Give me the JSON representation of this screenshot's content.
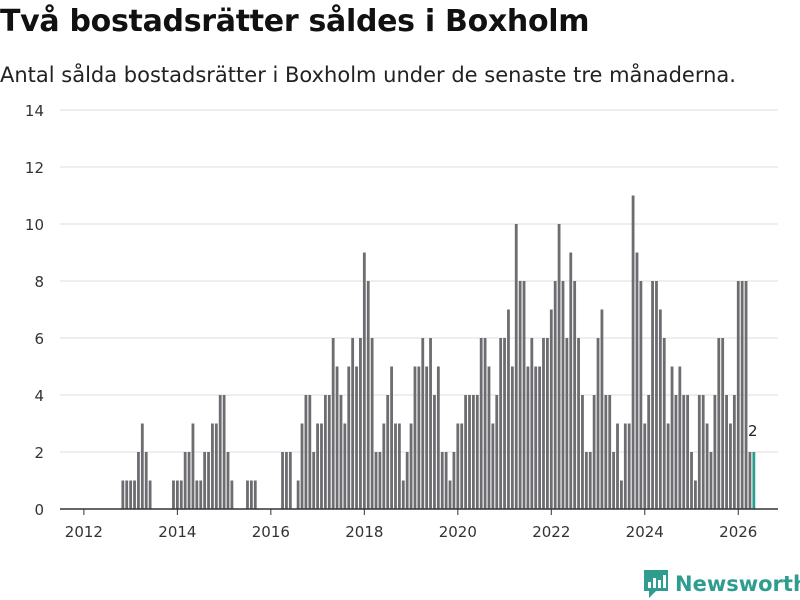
{
  "title": "Två bostadsrätter såldes i Boxholm",
  "subtitle": "Antal sålda bostadsrätter i Boxholm under de senaste tre månaderna.",
  "brand": {
    "name": "Newsworthy"
  },
  "colors": {
    "bar": "#6d6c70",
    "highlight": "#2a9d8f",
    "grid": "#dddddd",
    "axis": "#333333",
    "text": "#333333"
  },
  "chart_data": {
    "type": "bar",
    "title": "Två bostadsrätter såldes i Boxholm",
    "subtitle": "Antal sålda bostadsrätter i Boxholm under de senaste tre månaderna.",
    "xlabel": "",
    "ylabel": "",
    "x_start": "2011-12",
    "frequency": "monthly",
    "ylim": [
      0,
      14
    ],
    "yticks": [
      0,
      2,
      4,
      6,
      8,
      10,
      12,
      14
    ],
    "xticks": [
      "2012",
      "2014",
      "2016",
      "2018",
      "2020",
      "2022",
      "2024",
      "2026"
    ],
    "grid": true,
    "values": [
      0,
      0,
      0,
      0,
      0,
      0,
      0,
      0,
      0,
      0,
      0,
      1,
      1,
      1,
      1,
      2,
      3,
      2,
      1,
      0,
      0,
      0,
      0,
      0,
      1,
      1,
      1,
      2,
      2,
      3,
      1,
      1,
      2,
      2,
      3,
      3,
      4,
      4,
      2,
      1,
      0,
      0,
      0,
      1,
      1,
      1,
      0,
      0,
      0,
      0,
      0,
      0,
      2,
      2,
      2,
      0,
      1,
      3,
      4,
      4,
      2,
      3,
      3,
      4,
      4,
      6,
      5,
      4,
      3,
      5,
      6,
      5,
      6,
      9,
      8,
      6,
      2,
      2,
      3,
      4,
      5,
      3,
      3,
      1,
      2,
      3,
      5,
      5,
      6,
      5,
      6,
      4,
      5,
      2,
      2,
      1,
      2,
      3,
      3,
      4,
      4,
      4,
      4,
      6,
      6,
      5,
      3,
      4,
      6,
      6,
      7,
      5,
      10,
      8,
      8,
      5,
      6,
      5,
      5,
      6,
      6,
      7,
      8,
      10,
      8,
      6,
      9,
      8,
      6,
      4,
      2,
      2,
      4,
      6,
      7,
      4,
      4,
      2,
      3,
      1,
      3,
      3,
      11,
      9,
      8,
      3,
      4,
      8,
      8,
      7,
      6,
      3,
      5,
      4,
      5,
      4,
      4,
      2,
      1,
      4,
      4,
      3,
      2,
      4,
      6,
      6,
      4,
      3,
      4,
      8,
      8,
      8,
      2,
      2
    ],
    "highlight_last": true,
    "last_value_label": "2"
  }
}
